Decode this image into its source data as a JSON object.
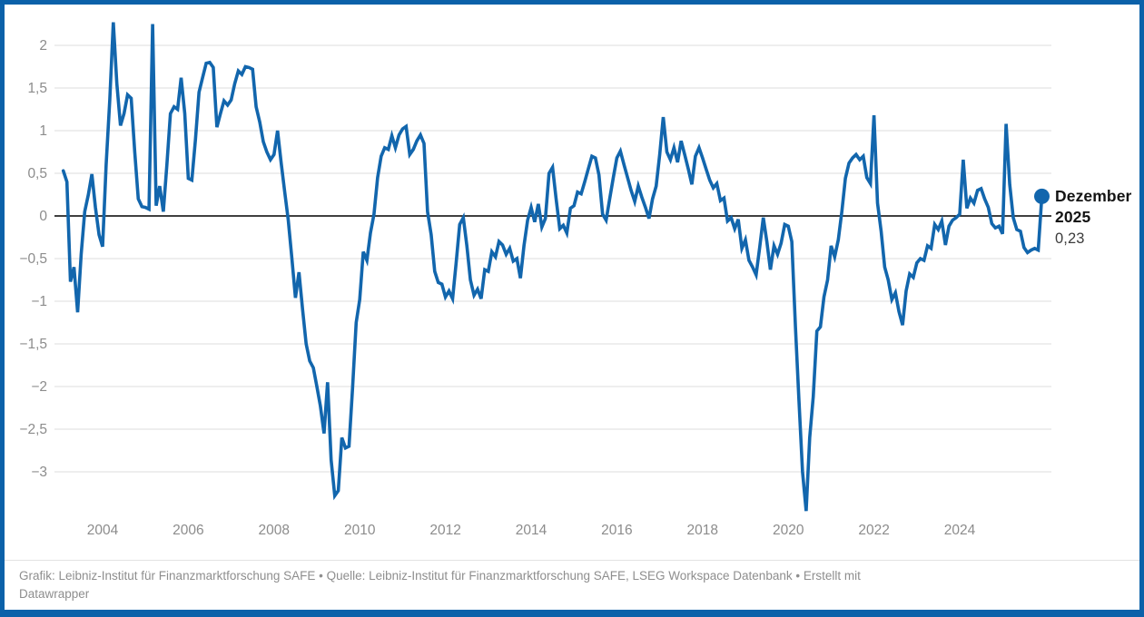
{
  "colors": {
    "frame_border": "#0B61A9",
    "line": "#1266AD",
    "grid": "#E3E3E3",
    "zero_line": "#000000",
    "axis_text": "#8C8C8C",
    "footer_text": "#8E8E8E",
    "annotation_text": "#141414"
  },
  "chart_data": {
    "type": "line",
    "title": "",
    "xlabel": "",
    "ylabel": "",
    "grid": true,
    "legend": "none",
    "frequency": "monthly",
    "start_year": 2003,
    "start_month": 2,
    "end_label": "Dezember 2025",
    "ylim": [
      -3.5,
      2.35
    ],
    "y_axis": {
      "ticks": [
        {
          "v": 2,
          "label": "2"
        },
        {
          "v": 1.5,
          "label": "1,5"
        },
        {
          "v": 1,
          "label": "1"
        },
        {
          "v": 0.5,
          "label": "0,5"
        },
        {
          "v": 0,
          "label": "0"
        },
        {
          "v": -0.5,
          "label": "−0,5"
        },
        {
          "v": -1,
          "label": "−1"
        },
        {
          "v": -1.5,
          "label": "−1,5"
        },
        {
          "v": -2,
          "label": "−2"
        },
        {
          "v": -2.5,
          "label": "−2,5"
        },
        {
          "v": -3,
          "label": "−3"
        }
      ]
    },
    "x_axis": {
      "ticks": [
        {
          "year": 2004,
          "label": "2004"
        },
        {
          "year": 2006,
          "label": "2006"
        },
        {
          "year": 2008,
          "label": "2008"
        },
        {
          "year": 2010,
          "label": "2010"
        },
        {
          "year": 2012,
          "label": "2012"
        },
        {
          "year": 2014,
          "label": "2014"
        },
        {
          "year": 2016,
          "label": "2016"
        },
        {
          "year": 2018,
          "label": "2018"
        },
        {
          "year": 2020,
          "label": "2020"
        },
        {
          "year": 2022,
          "label": "2022"
        },
        {
          "year": 2024,
          "label": "2024"
        }
      ]
    },
    "values": [
      0.53,
      0.4,
      -0.77,
      -0.6,
      -1.13,
      -0.45,
      0.05,
      0.25,
      0.49,
      0.1,
      -0.22,
      -0.36,
      0.6,
      1.36,
      2.27,
      1.55,
      1.06,
      1.2,
      1.42,
      1.38,
      0.75,
      0.2,
      0.11,
      0.1,
      0.08,
      2.25,
      0.12,
      0.35,
      0.05,
      0.6,
      1.2,
      1.28,
      1.25,
      1.62,
      1.2,
      0.44,
      0.42,
      0.9,
      1.45,
      1.62,
      1.79,
      1.8,
      1.74,
      1.04,
      1.2,
      1.35,
      1.3,
      1.36,
      1.55,
      1.7,
      1.66,
      1.75,
      1.74,
      1.72,
      1.28,
      1.1,
      0.87,
      0.75,
      0.66,
      0.72,
      1.0,
      0.62,
      0.28,
      -0.05,
      -0.5,
      -0.96,
      -0.66,
      -1.1,
      -1.5,
      -1.7,
      -1.78,
      -2.0,
      -2.23,
      -2.55,
      -1.95,
      -2.86,
      -3.28,
      -3.22,
      -2.6,
      -2.72,
      -2.7,
      -2.02,
      -1.25,
      -0.98,
      -0.42,
      -0.52,
      -0.2,
      0.02,
      0.45,
      0.7,
      0.8,
      0.78,
      0.94,
      0.8,
      0.95,
      1.02,
      1.05,
      0.72,
      0.78,
      0.88,
      0.95,
      0.85,
      0.05,
      -0.22,
      -0.65,
      -0.78,
      -0.8,
      -0.95,
      -0.88,
      -0.97,
      -0.55,
      -0.1,
      -0.02,
      -0.35,
      -0.75,
      -0.93,
      -0.86,
      -0.97,
      -0.63,
      -0.65,
      -0.42,
      -0.48,
      -0.3,
      -0.34,
      -0.45,
      -0.38,
      -0.53,
      -0.5,
      -0.73,
      -0.35,
      -0.05,
      0.1,
      -0.07,
      0.14,
      -0.13,
      -0.03,
      0.5,
      0.57,
      0.2,
      -0.15,
      -0.11,
      -0.2,
      0.09,
      0.12,
      0.28,
      0.26,
      0.4,
      0.55,
      0.7,
      0.68,
      0.48,
      0.02,
      -0.05,
      0.2,
      0.45,
      0.68,
      0.76,
      0.6,
      0.45,
      0.3,
      0.17,
      0.35,
      0.22,
      0.1,
      -0.03,
      0.2,
      0.35,
      0.72,
      1.16,
      0.75,
      0.66,
      0.8,
      0.63,
      0.88,
      0.72,
      0.55,
      0.37,
      0.7,
      0.8,
      0.68,
      0.55,
      0.42,
      0.33,
      0.38,
      0.18,
      0.21,
      -0.06,
      -0.02,
      -0.15,
      -0.04,
      -0.38,
      -0.28,
      -0.52,
      -0.6,
      -0.69,
      -0.37,
      -0.02,
      -0.3,
      -0.63,
      -0.35,
      -0.45,
      -0.32,
      -0.1,
      -0.12,
      -0.3,
      -1.3,
      -2.17,
      -3.0,
      -3.46,
      -2.6,
      -2.12,
      -1.35,
      -1.3,
      -0.95,
      -0.75,
      -0.35,
      -0.48,
      -0.28,
      0.05,
      0.44,
      0.62,
      0.68,
      0.72,
      0.66,
      0.7,
      0.45,
      0.38,
      1.18,
      0.15,
      -0.18,
      -0.6,
      -0.75,
      -0.98,
      -0.9,
      -1.12,
      -1.28,
      -0.88,
      -0.68,
      -0.72,
      -0.55,
      -0.5,
      -0.52,
      -0.35,
      -0.38,
      -0.1,
      -0.16,
      -0.06,
      -0.34,
      -0.12,
      -0.05,
      -0.02,
      0.02,
      0.66,
      0.09,
      0.21,
      0.15,
      0.3,
      0.32,
      0.2,
      0.1,
      -0.09,
      -0.14,
      -0.12,
      -0.21,
      1.08,
      0.37,
      -0.02,
      -0.16,
      -0.18,
      -0.37,
      -0.43,
      -0.4,
      -0.38,
      -0.4,
      0.23
    ],
    "annotation": {
      "line1": "Dezember",
      "line2": "2025",
      "value_label": "0,23",
      "value": 0.23
    }
  },
  "footer": {
    "line1": "Grafik: Leibniz-Institut für Finanzmarktforschung SAFE • Quelle: Leibniz-Institut für Finanzmarktforschung SAFE, LSEG Workspace Datenbank • Erstellt mit",
    "line2": "Datawrapper"
  }
}
